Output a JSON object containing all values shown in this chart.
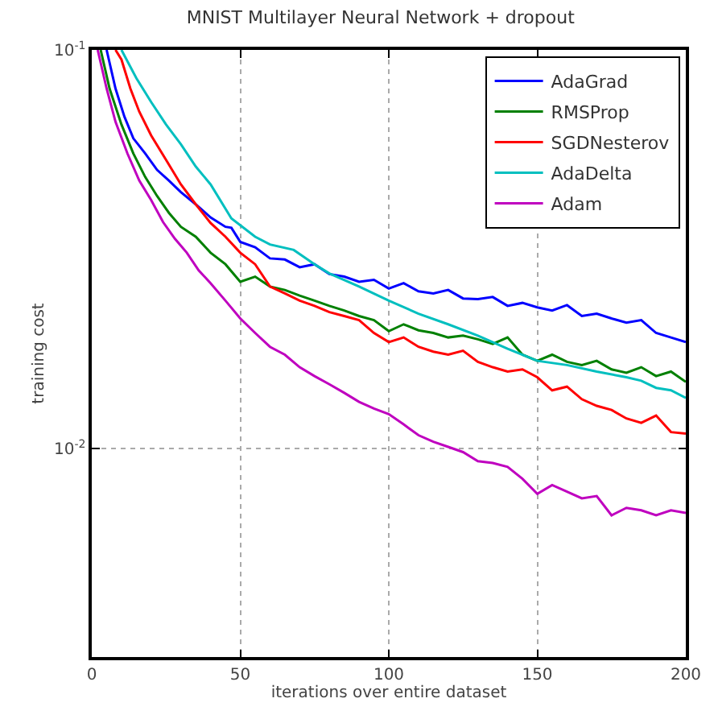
{
  "chart_data": {
    "type": "line",
    "title": "MNIST Multilayer Neural Network + dropout",
    "xlabel": "iterations over entire dataset",
    "ylabel": "training cost",
    "log": "y",
    "grid": true,
    "legend": "top right",
    "xlim": [
      0,
      200
    ],
    "xticks": [
      0,
      50,
      100,
      150,
      200
    ],
    "ylim": [
      0.003,
      0.1
    ],
    "yticks": [
      {
        "value": 0.01,
        "label": "10$^{-2}$"
      },
      {
        "value": 0.1,
        "label": "10$^{-1}$"
      }
    ],
    "series": [
      {
        "name": "AdaGrad",
        "color": "#0000ff",
        "x": [
          5,
          8,
          11,
          14,
          18,
          22,
          26,
          30,
          35,
          40,
          45,
          47,
          50,
          55,
          60,
          65,
          70,
          75,
          80,
          85,
          90,
          95,
          100,
          105,
          110,
          115,
          120,
          125,
          130,
          135,
          140,
          145,
          150,
          155,
          160,
          165,
          170,
          175,
          180,
          185,
          190,
          195,
          200
        ],
        "values": [
          0.1,
          0.08,
          0.068,
          0.06,
          0.055,
          0.05,
          0.047,
          0.044,
          0.041,
          0.038,
          0.036,
          0.0358,
          0.033,
          0.032,
          0.03,
          0.0298,
          0.0285,
          0.029,
          0.0274,
          0.027,
          0.0262,
          0.0265,
          0.0252,
          0.026,
          0.0248,
          0.0245,
          0.025,
          0.0238,
          0.0237,
          0.024,
          0.0228,
          0.0232,
          0.0226,
          0.0222,
          0.0229,
          0.0215,
          0.0218,
          0.0212,
          0.0207,
          0.021,
          0.0195,
          0.019,
          0.0185
        ]
      },
      {
        "name": "RMSProp",
        "color": "#008000",
        "x": [
          3,
          6,
          10,
          14,
          18,
          22,
          26,
          30,
          35,
          40,
          45,
          50,
          55,
          60,
          65,
          70,
          75,
          80,
          85,
          90,
          95,
          100,
          105,
          110,
          115,
          120,
          125,
          130,
          135,
          140,
          145,
          150,
          155,
          160,
          165,
          170,
          175,
          180,
          185,
          190,
          195,
          200
        ],
        "values": [
          0.1,
          0.08,
          0.065,
          0.055,
          0.048,
          0.043,
          0.039,
          0.036,
          0.034,
          0.031,
          0.029,
          0.0262,
          0.027,
          0.0255,
          0.025,
          0.0242,
          0.0235,
          0.0228,
          0.0222,
          0.0215,
          0.021,
          0.0197,
          0.0205,
          0.0198,
          0.0195,
          0.019,
          0.0192,
          0.0188,
          0.0183,
          0.019,
          0.0172,
          0.0166,
          0.0172,
          0.0165,
          0.0162,
          0.0166,
          0.0158,
          0.0155,
          0.016,
          0.0152,
          0.0156,
          0.0147
        ]
      },
      {
        "name": "SGDNesterov",
        "color": "#ff0000",
        "x": [
          8,
          10,
          13,
          16,
          20,
          25,
          30,
          35,
          40,
          45,
          50,
          55,
          60,
          65,
          70,
          75,
          80,
          85,
          90,
          95,
          100,
          105,
          110,
          115,
          120,
          125,
          130,
          135,
          140,
          145,
          150,
          155,
          160,
          165,
          170,
          175,
          180,
          185,
          190,
          195,
          200
        ],
        "values": [
          0.1,
          0.0946,
          0.08,
          0.07,
          0.061,
          0.053,
          0.046,
          0.041,
          0.0368,
          0.034,
          0.031,
          0.029,
          0.0255,
          0.0245,
          0.0235,
          0.0228,
          0.022,
          0.0215,
          0.021,
          0.0195,
          0.0185,
          0.019,
          0.018,
          0.0175,
          0.0172,
          0.0176,
          0.0165,
          0.016,
          0.0156,
          0.0158,
          0.0151,
          0.014,
          0.0143,
          0.0133,
          0.0128,
          0.0125,
          0.0119,
          0.0116,
          0.0121,
          0.011,
          0.0109
        ]
      },
      {
        "name": "AdaDelta",
        "color": "#00bfbf",
        "x": [
          10,
          15,
          20,
          25,
          30,
          35,
          40,
          47,
          55,
          60,
          68,
          75,
          80,
          90,
          100,
          110,
          120,
          130,
          140,
          150,
          160,
          170,
          180,
          185,
          190,
          195,
          200
        ],
        "values": [
          0.1,
          0.085,
          0.074,
          0.065,
          0.058,
          0.051,
          0.046,
          0.0378,
          0.034,
          0.0325,
          0.0315,
          0.029,
          0.0275,
          0.0255,
          0.0235,
          0.0218,
          0.0205,
          0.0192,
          0.0178,
          0.0166,
          0.0162,
          0.0156,
          0.0151,
          0.0148,
          0.0142,
          0.014,
          0.0134
        ]
      },
      {
        "name": "Adam",
        "color": "#bf00bf",
        "x": [
          2,
          5,
          8,
          12,
          16,
          20,
          24,
          28,
          32,
          36,
          40,
          45,
          50,
          55,
          60,
          65,
          70,
          75,
          80,
          85,
          90,
          95,
          100,
          105,
          110,
          115,
          120,
          125,
          130,
          135,
          140,
          145,
          150,
          155,
          160,
          165,
          170,
          175,
          180,
          185,
          190,
          195,
          200
        ],
        "values": [
          0.1,
          0.08,
          0.066,
          0.055,
          0.047,
          0.042,
          0.037,
          0.0336,
          0.031,
          0.028,
          0.026,
          0.0235,
          0.0212,
          0.0195,
          0.018,
          0.0172,
          0.016,
          0.0152,
          0.0145,
          0.0138,
          0.0131,
          0.0126,
          0.0122,
          0.0115,
          0.0108,
          0.0104,
          0.0101,
          0.0098,
          0.0093,
          0.0092,
          0.009,
          0.0084,
          0.0077,
          0.0081,
          0.0078,
          0.0075,
          0.0076,
          0.0068,
          0.0071,
          0.007,
          0.0068,
          0.007,
          0.0069
        ]
      }
    ]
  }
}
